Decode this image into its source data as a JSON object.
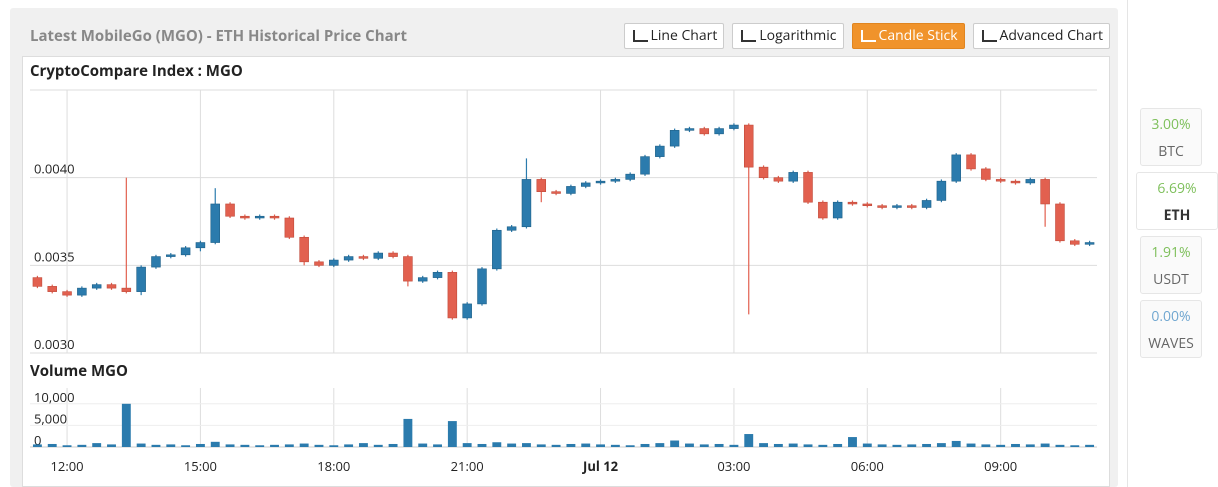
{
  "chart_data": {
    "type": "candlestick",
    "title": "Latest MobileGo (MGO) - ETH Historical Price Chart",
    "buttons": [
      "Line Chart",
      "Logarithmic",
      "Candle Stick",
      "Advanced Chart"
    ],
    "active_button": 2,
    "price_title": "CryptoCompare Index : MGO",
    "volume_title": "Volume MGO",
    "x": [
      "11:20",
      "11:40",
      "12:00",
      "12:20",
      "12:40",
      "13:00",
      "13:20",
      "13:40",
      "14:00",
      "14:20",
      "14:40",
      "15:00",
      "15:20",
      "15:40",
      "16:00",
      "16:20",
      "16:40",
      "17:00",
      "17:20",
      "17:40",
      "18:00",
      "18:20",
      "18:40",
      "19:00",
      "19:20",
      "19:40",
      "20:00",
      "20:20",
      "20:40",
      "21:00",
      "21:20",
      "21:40",
      "22:00",
      "22:20",
      "22:40",
      "23:00",
      "23:20",
      "23:40",
      "00:00",
      "00:20",
      "00:40",
      "01:00",
      "01:20",
      "01:40",
      "02:00",
      "02:20",
      "02:40",
      "03:00",
      "03:20",
      "03:40",
      "04:00",
      "04:20",
      "04:40",
      "05:00",
      "05:20",
      "05:40",
      "06:00",
      "06:20",
      "06:40",
      "07:00",
      "07:20",
      "07:40",
      "08:00",
      "08:20",
      "08:40",
      "09:00",
      "09:20",
      "09:40",
      "10:00",
      "10:20",
      "10:40",
      "11:00"
    ],
    "open": [
      0.00343,
      0.00338,
      0.00335,
      0.00333,
      0.00337,
      0.00339,
      0.00337,
      0.00335,
      0.00349,
      0.00355,
      0.00356,
      0.0036,
      0.00363,
      0.00385,
      0.00378,
      0.00377,
      0.00378,
      0.00377,
      0.00366,
      0.00352,
      0.0035,
      0.00353,
      0.00355,
      0.00354,
      0.00357,
      0.00355,
      0.00341,
      0.00343,
      0.00346,
      0.0032,
      0.00328,
      0.00348,
      0.0037,
      0.00372,
      0.00399,
      0.00392,
      0.00391,
      0.00395,
      0.00397,
      0.00398,
      0.00399,
      0.00402,
      0.00412,
      0.00418,
      0.00427,
      0.00428,
      0.00425,
      0.00428,
      0.0043,
      0.00406,
      0.004,
      0.00398,
      0.00403,
      0.00386,
      0.00377,
      0.00386,
      0.00385,
      0.00384,
      0.00383,
      0.00384,
      0.00383,
      0.00387,
      0.00398,
      0.00413,
      0.00405,
      0.00399,
      0.00398,
      0.00397,
      0.00399,
      0.00385,
      0.00364,
      0.00362
    ],
    "high": [
      0.00344,
      0.00339,
      0.00336,
      0.00338,
      0.0034,
      0.0034,
      0.004,
      0.0035,
      0.00356,
      0.00357,
      0.00361,
      0.00364,
      0.00394,
      0.00386,
      0.00379,
      0.00379,
      0.00379,
      0.00378,
      0.00367,
      0.00353,
      0.00354,
      0.00356,
      0.00356,
      0.00358,
      0.00358,
      0.00356,
      0.00344,
      0.00347,
      0.00347,
      0.00329,
      0.00349,
      0.00371,
      0.00373,
      0.00411,
      0.004,
      0.00393,
      0.00396,
      0.00398,
      0.00399,
      0.004,
      0.00403,
      0.00413,
      0.00419,
      0.00428,
      0.00429,
      0.00429,
      0.00429,
      0.00431,
      0.00431,
      0.00407,
      0.00401,
      0.00404,
      0.00404,
      0.00387,
      0.00387,
      0.00387,
      0.00386,
      0.00385,
      0.00385,
      0.00385,
      0.00388,
      0.00399,
      0.00414,
      0.00414,
      0.00406,
      0.004,
      0.00399,
      0.004,
      0.004,
      0.00386,
      0.00365,
      0.00364
    ],
    "low": [
      0.00337,
      0.00334,
      0.00332,
      0.00332,
      0.00336,
      0.00336,
      0.00334,
      0.00333,
      0.00348,
      0.00354,
      0.00355,
      0.00358,
      0.00362,
      0.00377,
      0.00376,
      0.00376,
      0.00376,
      0.00365,
      0.0035,
      0.00349,
      0.00349,
      0.00352,
      0.00353,
      0.00353,
      0.00354,
      0.00338,
      0.0034,
      0.00342,
      0.00319,
      0.00319,
      0.00327,
      0.00347,
      0.00369,
      0.00371,
      0.00386,
      0.0039,
      0.0039,
      0.00394,
      0.00396,
      0.00397,
      0.00398,
      0.00401,
      0.00411,
      0.00417,
      0.00426,
      0.00424,
      0.00424,
      0.00427,
      0.00322,
      0.00399,
      0.00397,
      0.00397,
      0.00385,
      0.00376,
      0.00376,
      0.00384,
      0.00383,
      0.00382,
      0.00382,
      0.00382,
      0.00382,
      0.00386,
      0.00397,
      0.00404,
      0.00398,
      0.00397,
      0.00396,
      0.00396,
      0.00372,
      0.00363,
      0.00361,
      0.00361
    ],
    "close": [
      0.00338,
      0.00335,
      0.00333,
      0.00337,
      0.00339,
      0.00337,
      0.00335,
      0.00349,
      0.00355,
      0.00356,
      0.0036,
      0.00363,
      0.00385,
      0.00378,
      0.00377,
      0.00378,
      0.00377,
      0.00366,
      0.00352,
      0.0035,
      0.00353,
      0.00355,
      0.00354,
      0.00357,
      0.00355,
      0.00341,
      0.00343,
      0.00346,
      0.0032,
      0.00328,
      0.00348,
      0.0037,
      0.00372,
      0.00399,
      0.00392,
      0.00391,
      0.00395,
      0.00397,
      0.00398,
      0.00399,
      0.00402,
      0.00412,
      0.00418,
      0.00427,
      0.00428,
      0.00425,
      0.00428,
      0.0043,
      0.00406,
      0.004,
      0.00398,
      0.00403,
      0.00386,
      0.00377,
      0.00386,
      0.00385,
      0.00384,
      0.00383,
      0.00384,
      0.00383,
      0.00387,
      0.00398,
      0.00413,
      0.00405,
      0.00399,
      0.00398,
      0.00397,
      0.00399,
      0.00385,
      0.00364,
      0.00362,
      0.00363
    ],
    "volume": [
      600,
      700,
      400,
      500,
      900,
      600,
      10000,
      800,
      500,
      600,
      400,
      700,
      1200,
      600,
      500,
      400,
      500,
      600,
      800,
      500,
      400,
      600,
      900,
      500,
      700,
      6500,
      800,
      600,
      6000,
      900,
      700,
      1100,
      800,
      900,
      600,
      500,
      700,
      800,
      600,
      500,
      400,
      700,
      900,
      1500,
      800,
      600,
      700,
      500,
      3000,
      900,
      700,
      800,
      600,
      500,
      700,
      2300,
      800,
      600,
      500,
      600,
      700,
      900,
      1400,
      800,
      600,
      500,
      700,
      600,
      800,
      500,
      400,
      500
    ],
    "up_color": "#2b7bad",
    "down_color": "#e2604f",
    "volume_color": "#2b7bad",
    "ylim": [
      0.003,
      0.0045
    ],
    "yticks": [
      {
        "value": 0.003,
        "label": "0.0030"
      },
      {
        "value": 0.0035,
        "label": "0.0035"
      },
      {
        "value": 0.004,
        "label": "0.0040"
      }
    ],
    "volume_ylim": [
      0,
      12500
    ],
    "volume_yticks": [
      0,
      {
        "value": 5000,
        "label": "5,000"
      },
      {
        "value": 10000,
        "label": "10,000"
      }
    ],
    "xticks": [
      "12:00",
      "15:00",
      "18:00",
      "21:00",
      {
        "value": "00:00",
        "label": "Jul 12"
      },
      "03:00",
      "06:00",
      "09:00"
    ],
    "grid": true
  },
  "sidebar": [
    {
      "change": "3.00%",
      "pair": "BTC"
    },
    {
      "change": "6.69%",
      "pair": "ETH"
    },
    {
      "change": "1.91%",
      "pair": "USDT"
    },
    {
      "change": "0.00%",
      "pair": "WAVES"
    }
  ],
  "sidebar_selected": 1
}
